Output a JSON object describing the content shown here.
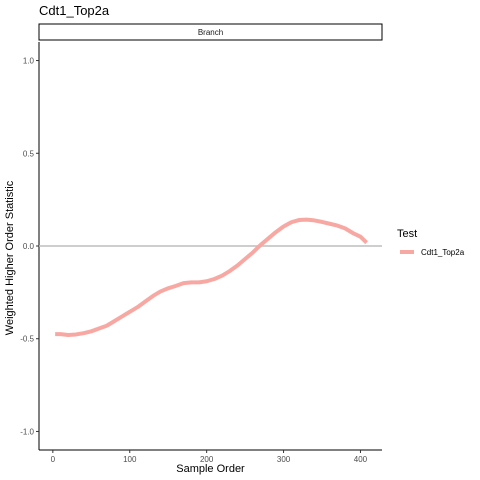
{
  "chart_data": {
    "type": "line",
    "title": "Cdt1_Top2a",
    "facet_label": "Branch",
    "xlabel": "Sample Order",
    "ylabel": "Weighted Higher Order Statistic",
    "xlim": [
      -18,
      428
    ],
    "ylim": [
      -1.1,
      1.1
    ],
    "x_ticks": [
      0,
      100,
      200,
      300,
      400
    ],
    "y_ticks": [
      -1.0,
      -0.5,
      0.0,
      0.5,
      1.0
    ],
    "y_tick_labels": [
      "-1.0",
      "-0.5",
      "0.0",
      "0.5",
      "1.0"
    ],
    "reference_line_y": 0,
    "legend": {
      "title": "Test",
      "position": "right"
    },
    "series": [
      {
        "name": "Cdt1_Top2a",
        "color": "#f8a8a2",
        "x": [
          3,
          10,
          20,
          30,
          40,
          50,
          60,
          70,
          80,
          90,
          100,
          110,
          120,
          130,
          140,
          150,
          160,
          170,
          180,
          190,
          200,
          210,
          220,
          230,
          240,
          250,
          260,
          270,
          280,
          290,
          300,
          310,
          320,
          330,
          340,
          350,
          360,
          370,
          380,
          390,
          400,
          408
        ],
        "values": [
          -0.475,
          -0.475,
          -0.48,
          -0.477,
          -0.47,
          -0.46,
          -0.445,
          -0.43,
          -0.405,
          -0.38,
          -0.355,
          -0.33,
          -0.3,
          -0.27,
          -0.245,
          -0.228,
          -0.215,
          -0.2,
          -0.196,
          -0.196,
          -0.19,
          -0.178,
          -0.16,
          -0.135,
          -0.105,
          -0.07,
          -0.035,
          0.005,
          0.04,
          0.075,
          0.105,
          0.128,
          0.14,
          0.142,
          0.138,
          0.13,
          0.12,
          0.11,
          0.095,
          0.07,
          0.05,
          0.018
        ]
      }
    ]
  }
}
